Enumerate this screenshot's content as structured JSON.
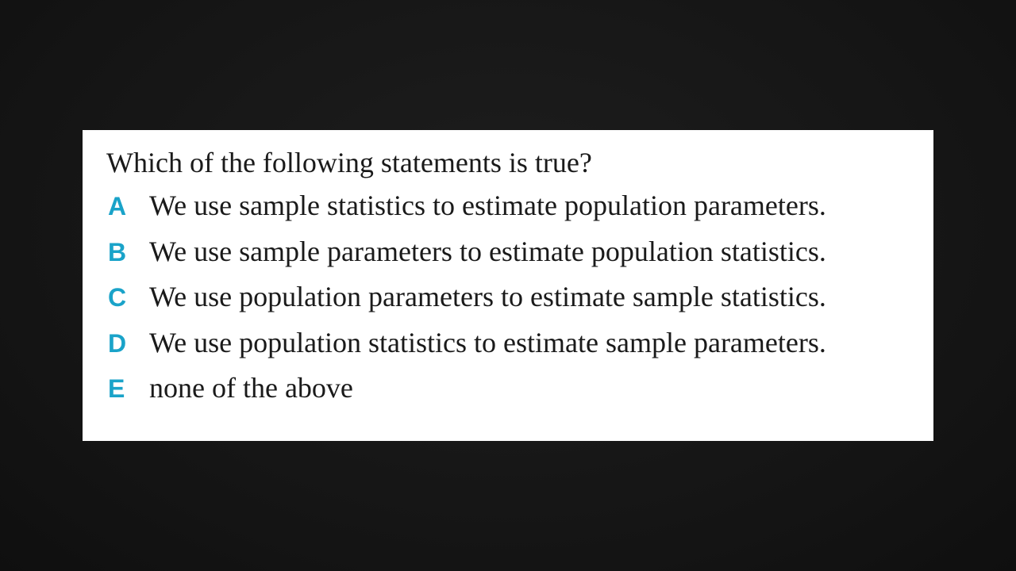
{
  "question": {
    "text": "Which of the following statements is true?",
    "options": [
      {
        "letter": "A",
        "text": "We use sample statistics to estimate population parameters."
      },
      {
        "letter": "B",
        "text": "We use sample parameters to estimate population statistics."
      },
      {
        "letter": "C",
        "text": "We use population parameters to estimate sample statistics."
      },
      {
        "letter": "D",
        "text": "We use population statistics to estimate sample parameters."
      },
      {
        "letter": "E",
        "text": "none of the above"
      }
    ]
  },
  "colors": {
    "background": "#161616",
    "card": "#ffffff",
    "option_letter": "#1aa3c9",
    "text": "#1a1a1a"
  }
}
